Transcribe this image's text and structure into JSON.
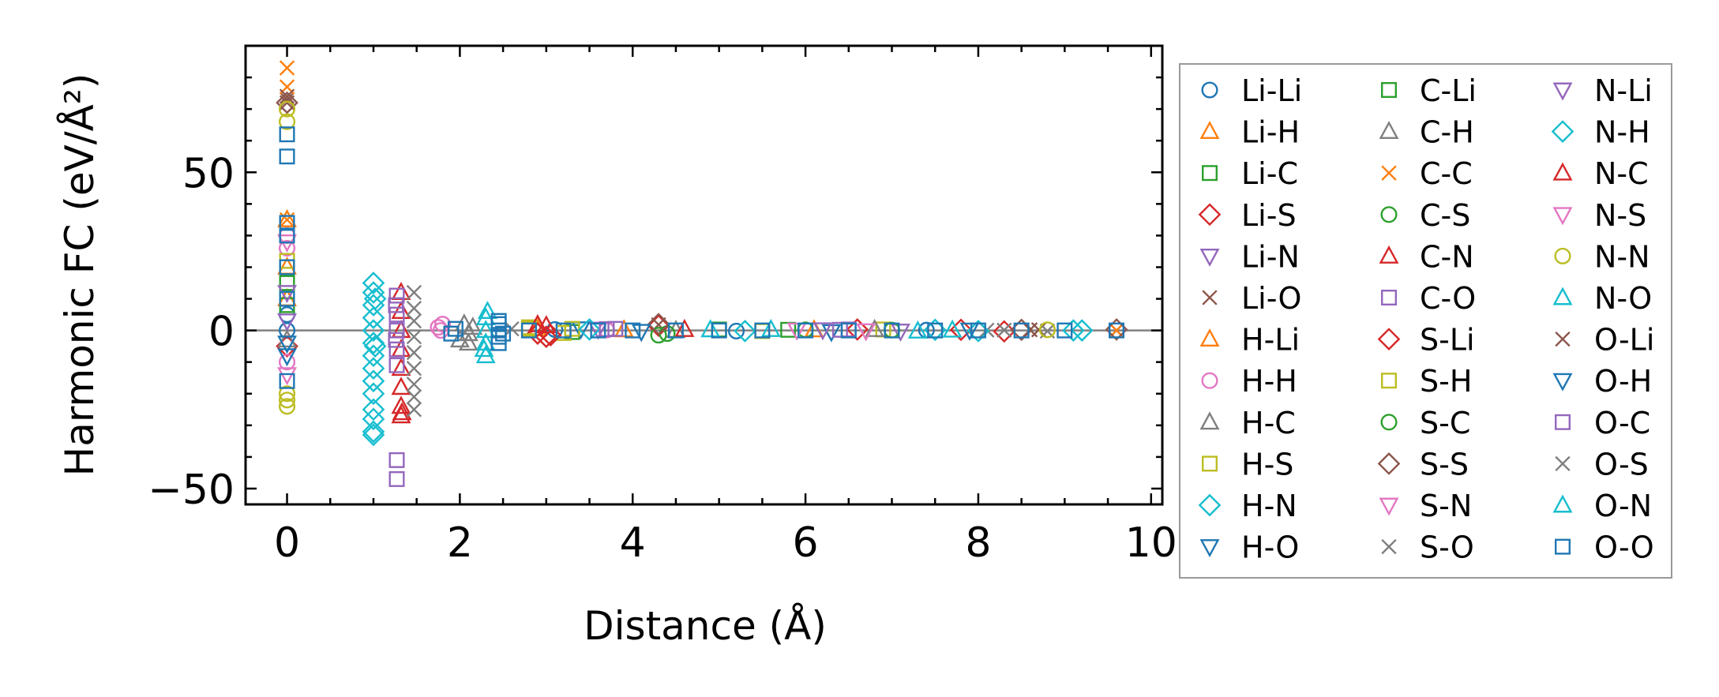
{
  "chart_data": {
    "type": "scatter",
    "title": "",
    "xlabel": "Distance (Å)",
    "ylabel": "Harmonic FC (eV/Å²)",
    "xlim": [
      -0.48,
      10.13
    ],
    "ylim": [
      -55,
      90
    ],
    "xticks": [
      0,
      2,
      4,
      6,
      8,
      10
    ],
    "xtick_labels": [
      "0",
      "2",
      "4",
      "6",
      "8",
      "10"
    ],
    "yticks": [
      -50,
      0,
      50
    ],
    "ytick_labels": [
      "−50",
      "0",
      "50"
    ],
    "reference_line_y": 0,
    "legend_placement": "outside-right",
    "series": [
      {
        "name": "Li-Li",
        "color": "#1f77b4",
        "marker": "o",
        "points": [
          [
            0,
            0
          ],
          [
            0,
            5
          ],
          [
            3.1,
            0.3
          ],
          [
            5.2,
            -0.2
          ],
          [
            7.4,
            0.1
          ]
        ]
      },
      {
        "name": "Li-H",
        "color": "#ff7f0e",
        "marker": "^",
        "points": [
          [
            0,
            35
          ],
          [
            0,
            10
          ],
          [
            2.9,
            0.5
          ],
          [
            6.1,
            0.2
          ]
        ]
      },
      {
        "name": "Li-C",
        "color": "#2ca02c",
        "marker": "s",
        "points": [
          [
            0,
            15
          ],
          [
            3.3,
            -0.5
          ],
          [
            5.8,
            0.2
          ]
        ]
      },
      {
        "name": "Li-S",
        "color": "#d62728",
        "marker": "D",
        "points": [
          [
            0,
            -5
          ],
          [
            2.9,
            -1
          ],
          [
            3.0,
            -2
          ],
          [
            4.3,
            1.5
          ],
          [
            6.6,
            0.3
          ],
          [
            8.3,
            -0.3
          ]
        ]
      },
      {
        "name": "Li-N",
        "color": "#9467bd",
        "marker": "v",
        "points": [
          [
            0,
            3
          ],
          [
            3.6,
            0.4
          ],
          [
            7.1,
            -0.2
          ]
        ]
      },
      {
        "name": "Li-O",
        "color": "#8c564b",
        "marker": "x",
        "points": [
          [
            0,
            73
          ],
          [
            0,
            72
          ],
          [
            4.3,
            1.8
          ],
          [
            8.7,
            0.2
          ],
          [
            9.6,
            0
          ]
        ]
      },
      {
        "name": "H-Li",
        "color": "#ff7f0e",
        "marker": "^",
        "points": [
          [
            0,
            20
          ],
          [
            3.9,
            0.2
          ]
        ]
      },
      {
        "name": "H-H",
        "color": "#e377c2",
        "marker": "o",
        "points": [
          [
            0,
            30
          ],
          [
            0,
            26
          ],
          [
            0,
            -10
          ],
          [
            1.75,
            1
          ],
          [
            1.78,
            0
          ],
          [
            1.8,
            2
          ],
          [
            3.7,
            0.1
          ]
        ]
      },
      {
        "name": "H-C",
        "color": "#7f7f7f",
        "marker": "^",
        "points": [
          [
            0,
            -3
          ],
          [
            2.0,
            -3
          ],
          [
            2.05,
            2
          ],
          [
            2.1,
            -1
          ],
          [
            4.5,
            0
          ]
        ]
      },
      {
        "name": "H-S",
        "color": "#bcbd22",
        "marker": "s",
        "points": [
          [
            0,
            22
          ],
          [
            2.8,
            0.5
          ],
          [
            3.2,
            -0.8
          ],
          [
            6.9,
            0.3
          ]
        ]
      },
      {
        "name": "H-N",
        "color": "#17becf",
        "marker": "D",
        "points": [
          [
            1.0,
            15
          ],
          [
            1.0,
            12
          ],
          [
            1.0,
            8
          ],
          [
            1.0,
            4
          ],
          [
            1.0,
            0
          ],
          [
            1.0,
            -4
          ],
          [
            1.0,
            -8
          ],
          [
            1.0,
            -12
          ],
          [
            1.0,
            -16
          ],
          [
            1.0,
            -20
          ],
          [
            1.0,
            -25
          ],
          [
            1.0,
            -28
          ],
          [
            1.0,
            -32
          ],
          [
            1.0,
            -33
          ],
          [
            9.2,
            0
          ]
        ]
      },
      {
        "name": "H-O",
        "color": "#1f77b4",
        "marker": "v",
        "points": [
          [
            0,
            -8
          ],
          [
            3.4,
            0.5
          ],
          [
            6.3,
            -0.4
          ]
        ]
      },
      {
        "name": "C-Li",
        "color": "#2ca02c",
        "marker": "s",
        "points": [
          [
            0,
            8
          ],
          [
            5.0,
            0.3
          ]
        ]
      },
      {
        "name": "C-H",
        "color": "#7f7f7f",
        "marker": "^",
        "points": [
          [
            2.1,
            -4
          ],
          [
            2.15,
            1
          ],
          [
            6.8,
            0.3
          ]
        ]
      },
      {
        "name": "C-C",
        "color": "#ff7f0e",
        "marker": "x",
        "points": [
          [
            0,
            83
          ],
          [
            0,
            77
          ],
          [
            0,
            35
          ],
          [
            9.6,
            0
          ]
        ]
      },
      {
        "name": "C-S",
        "color": "#2ca02c",
        "marker": "o",
        "points": [
          [
            4.3,
            -1.5
          ],
          [
            6.0,
            0.2
          ]
        ]
      },
      {
        "name": "C-N",
        "color": "#d62728",
        "marker": "^",
        "points": [
          [
            1.32,
            12
          ],
          [
            1.32,
            6
          ],
          [
            1.32,
            0
          ],
          [
            1.32,
            -6
          ],
          [
            1.32,
            -12
          ],
          [
            1.32,
            -18
          ],
          [
            1.32,
            -24
          ],
          [
            1.32,
            -27
          ],
          [
            3.0,
            1.5
          ]
        ]
      },
      {
        "name": "C-O",
        "color": "#9467bd",
        "marker": "s",
        "points": [
          [
            1.27,
            -47
          ],
          [
            1.27,
            -41
          ],
          [
            1.27,
            11
          ],
          [
            1.27,
            5
          ],
          [
            1.27,
            0
          ],
          [
            1.27,
            -6
          ],
          [
            1.27,
            -11
          ],
          [
            3.8,
            0.5
          ],
          [
            6.5,
            0.3
          ]
        ]
      },
      {
        "name": "S-Li",
        "color": "#d62728",
        "marker": "D",
        "points": [
          [
            3.05,
            -1.5
          ],
          [
            7.8,
            0.2
          ]
        ]
      },
      {
        "name": "S-H",
        "color": "#bcbd22",
        "marker": "s",
        "points": [
          [
            2.8,
            1
          ],
          [
            3.3,
            0.5
          ],
          [
            5.5,
            -0.2
          ]
        ]
      },
      {
        "name": "S-C",
        "color": "#2ca02c",
        "marker": "o",
        "points": [
          [
            4.4,
            -1
          ],
          [
            7.0,
            0.1
          ]
        ]
      },
      {
        "name": "S-S",
        "color": "#8c564b",
        "marker": "D",
        "points": [
          [
            0,
            72
          ],
          [
            4.3,
            2
          ],
          [
            8.5,
            0.2
          ],
          [
            9.6,
            0.3
          ]
        ]
      },
      {
        "name": "S-N",
        "color": "#e377c2",
        "marker": "v",
        "points": [
          [
            0,
            28
          ],
          [
            5.9,
            0.1
          ]
        ]
      },
      {
        "name": "S-O",
        "color": "#7f7f7f",
        "marker": "x",
        "points": [
          [
            2.6,
            0.5
          ],
          [
            8.1,
            0.1
          ],
          [
            8.8,
            -0.2
          ]
        ]
      },
      {
        "name": "N-Li",
        "color": "#9467bd",
        "marker": "v",
        "points": [
          [
            0,
            12
          ],
          [
            6.2,
            0.2
          ]
        ]
      },
      {
        "name": "N-H",
        "color": "#17becf",
        "marker": "D",
        "points": [
          [
            1.02,
            10
          ],
          [
            1.02,
            -5
          ],
          [
            3.5,
            0.3
          ],
          [
            5.3,
            -0.2
          ],
          [
            7.5,
            0.2
          ],
          [
            8.0,
            -0.2
          ],
          [
            9.1,
            0
          ]
        ]
      },
      {
        "name": "N-C",
        "color": "#d62728",
        "marker": "^",
        "points": [
          [
            1.33,
            -26
          ],
          [
            2.9,
            1.8
          ],
          [
            4.6,
            0.3
          ]
        ]
      },
      {
        "name": "N-S",
        "color": "#e377c2",
        "marker": "v",
        "points": [
          [
            0,
            -14
          ],
          [
            6.7,
            -0.1
          ]
        ]
      },
      {
        "name": "N-N",
        "color": "#bcbd22",
        "marker": "o",
        "points": [
          [
            0,
            70
          ],
          [
            0,
            66
          ],
          [
            0,
            -20
          ],
          [
            0,
            -22
          ],
          [
            0,
            -24
          ],
          [
            8.8,
            0.2
          ]
        ]
      },
      {
        "name": "N-O",
        "color": "#17becf",
        "marker": "^",
        "points": [
          [
            2.3,
            -8
          ],
          [
            2.3,
            -4
          ],
          [
            2.3,
            0
          ],
          [
            2.3,
            4
          ],
          [
            2.32,
            6
          ],
          [
            5.6,
            0.3
          ],
          [
            7.3,
            -0.2
          ]
        ]
      },
      {
        "name": "O-Li",
        "color": "#8c564b",
        "marker": "x",
        "points": [
          [
            0,
            74
          ],
          [
            8.6,
            0.2
          ]
        ]
      },
      {
        "name": "O-H",
        "color": "#1f77b4",
        "marker": "v",
        "points": [
          [
            0,
            -4
          ],
          [
            4.1,
            -0.3
          ],
          [
            7.9,
            0.1
          ]
        ]
      },
      {
        "name": "O-C",
        "color": "#9467bd",
        "marker": "s",
        "points": [
          [
            1.26,
            -3
          ],
          [
            1.26,
            8
          ],
          [
            3.7,
            0.4
          ],
          [
            6.4,
            0.2
          ]
        ]
      },
      {
        "name": "O-S",
        "color": "#7f7f7f",
        "marker": "x",
        "points": [
          [
            1.47,
            12
          ],
          [
            1.47,
            7
          ],
          [
            1.47,
            3
          ],
          [
            1.47,
            -2
          ],
          [
            1.47,
            -7
          ],
          [
            1.47,
            -12
          ],
          [
            1.47,
            -17
          ],
          [
            1.47,
            -21
          ],
          [
            1.47,
            -25
          ],
          [
            8.3,
            0.1
          ]
        ]
      },
      {
        "name": "O-N",
        "color": "#17becf",
        "marker": "^",
        "points": [
          [
            2.28,
            -6
          ],
          [
            4.9,
            0.2
          ],
          [
            7.7,
            0.1
          ]
        ]
      },
      {
        "name": "O-O",
        "color": "#1f77b4",
        "marker": "s",
        "points": [
          [
            0,
            62
          ],
          [
            0,
            55
          ],
          [
            0,
            34
          ],
          [
            0,
            30
          ],
          [
            0,
            20
          ],
          [
            0,
            10
          ],
          [
            0,
            -16
          ],
          [
            2.45,
            -4
          ],
          [
            2.45,
            -2
          ],
          [
            2.45,
            0
          ],
          [
            2.45,
            2
          ],
          [
            2.45,
            3
          ],
          [
            2.5,
            -1
          ],
          [
            1.9,
            -1
          ],
          [
            1.95,
            0.5
          ],
          [
            2.8,
            0
          ],
          [
            3.2,
            0
          ],
          [
            3.6,
            0
          ],
          [
            4.0,
            0
          ],
          [
            4.5,
            0
          ],
          [
            5.0,
            0
          ],
          [
            5.5,
            0
          ],
          [
            6.0,
            0
          ],
          [
            6.5,
            0
          ],
          [
            7.0,
            0
          ],
          [
            7.5,
            0
          ],
          [
            8.0,
            0
          ],
          [
            8.5,
            0
          ],
          [
            9.0,
            0
          ],
          [
            9.6,
            0
          ]
        ]
      }
    ]
  }
}
